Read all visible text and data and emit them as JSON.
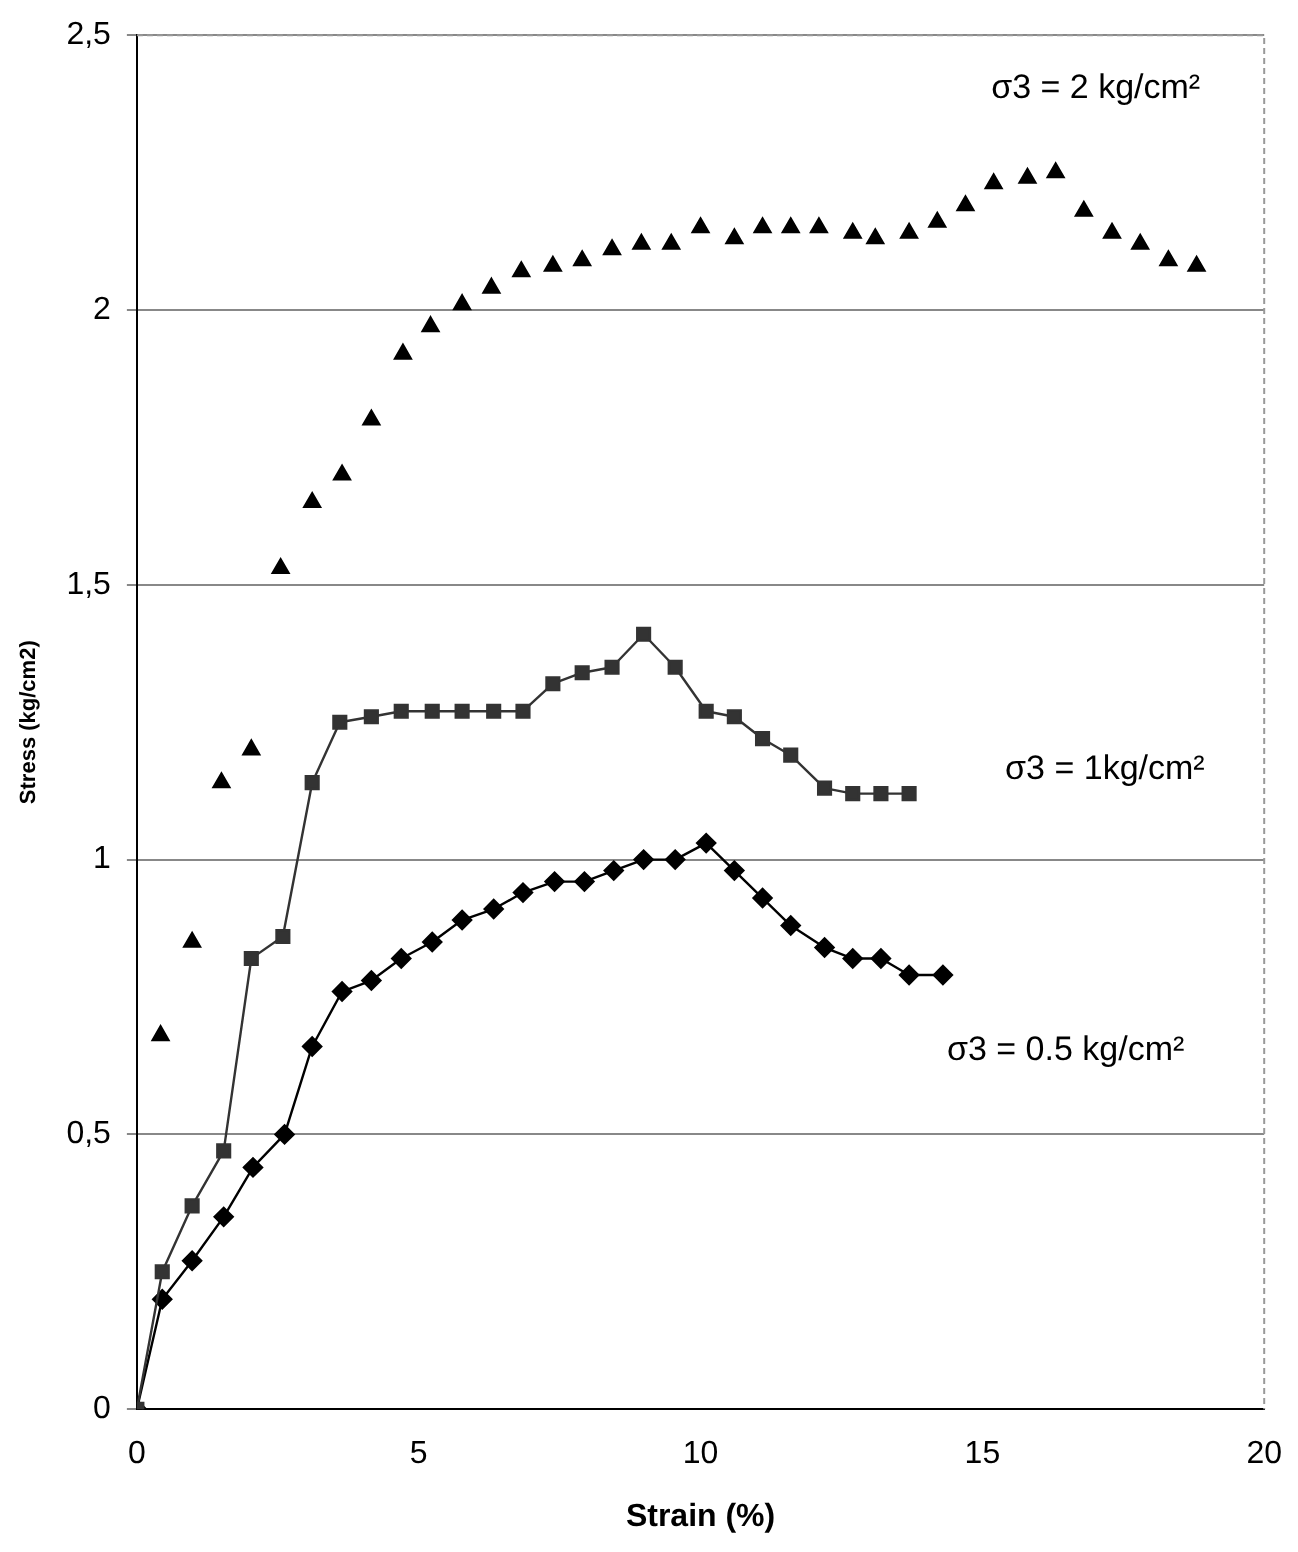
{
  "chart_data": {
    "type": "line",
    "xlabel": "Strain (%)",
    "ylabel": "Stress (kg/cm2)",
    "xlim": [
      0,
      20
    ],
    "xticks": [
      0,
      5,
      10,
      15,
      20
    ],
    "ylim": [
      0,
      2.5
    ],
    "yticks": [
      0,
      {
        "value": 0.5,
        "label": "0,5"
      },
      1,
      {
        "value": 1.5,
        "label": "1,5"
      },
      2,
      {
        "value": 2.5,
        "label": "2,5"
      }
    ],
    "grid": "y",
    "legend": false,
    "series": [
      {
        "name": "σ3 = 2 kg/cm²",
        "type": "scatter",
        "marker": "triangle",
        "color": "#000000",
        "x": [
          0.42,
          0.98,
          1.5,
          2.03,
          2.55,
          3.11,
          3.64,
          4.16,
          4.72,
          5.21,
          5.77,
          6.29,
          6.82,
          7.38,
          7.9,
          8.43,
          8.95,
          9.48,
          10.0,
          10.6,
          11.1,
          11.6,
          12.1,
          12.7,
          13.1,
          13.7,
          14.2,
          14.7,
          15.2,
          15.8,
          16.3,
          16.8,
          17.3,
          17.8,
          18.3,
          18.8
        ],
        "values": [
          0.68,
          0.85,
          1.14,
          1.2,
          1.53,
          1.65,
          1.7,
          1.8,
          1.92,
          1.97,
          2.01,
          2.04,
          2.07,
          2.08,
          2.09,
          2.11,
          2.12,
          2.12,
          2.15,
          2.13,
          2.15,
          2.15,
          2.15,
          2.14,
          2.13,
          2.14,
          2.16,
          2.19,
          2.23,
          2.24,
          2.25,
          2.18,
          2.14,
          2.12,
          2.09,
          2.08
        ]
      },
      {
        "name": "σ3 = 1kg/cm²",
        "type": "line",
        "marker": "square",
        "line_style": "solid",
        "color": "#333333",
        "x": [
          0,
          0.45,
          0.98,
          1.54,
          2.03,
          2.59,
          3.11,
          3.6,
          4.16,
          4.69,
          5.24,
          5.77,
          6.33,
          6.85,
          7.38,
          7.9,
          8.43,
          8.99,
          9.55,
          10.1,
          10.6,
          11.1,
          11.6,
          12.2,
          12.7,
          13.2,
          13.7
        ],
        "values": [
          0,
          0.25,
          0.37,
          0.47,
          0.82,
          0.86,
          1.14,
          1.25,
          1.26,
          1.27,
          1.27,
          1.27,
          1.27,
          1.27,
          1.32,
          1.34,
          1.35,
          1.41,
          1.35,
          1.27,
          1.26,
          1.22,
          1.19,
          1.13,
          1.12,
          1.12,
          1.12
        ]
      },
      {
        "name": "σ3 = 0.5 kg/cm²",
        "type": "line",
        "marker": "diamond",
        "line_style": "solid",
        "color": "#000000",
        "x": [
          0,
          0.45,
          0.98,
          1.54,
          2.06,
          2.62,
          3.11,
          3.64,
          4.16,
          4.69,
          5.24,
          5.77,
          6.33,
          6.85,
          7.41,
          7.94,
          8.46,
          8.99,
          9.55,
          10.1,
          10.6,
          11.1,
          11.6,
          12.2,
          12.7,
          13.2,
          13.7,
          14.3
        ],
        "values": [
          0,
          0.2,
          0.27,
          0.35,
          0.44,
          0.5,
          0.66,
          0.76,
          0.78,
          0.82,
          0.85,
          0.89,
          0.91,
          0.94,
          0.96,
          0.96,
          0.98,
          1.0,
          1.0,
          1.03,
          0.98,
          0.93,
          0.88,
          0.84,
          0.82,
          0.82,
          0.79,
          0.79
        ]
      }
    ]
  }
}
